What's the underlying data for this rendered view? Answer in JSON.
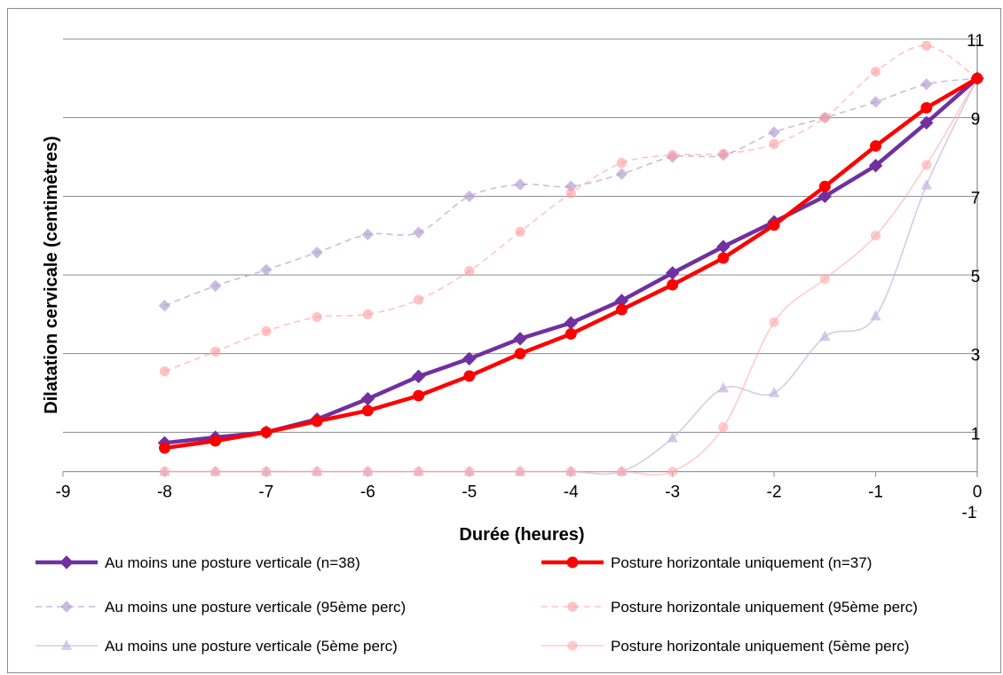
{
  "chart_data": {
    "type": "line",
    "xlabel": "Durée (heures)",
    "ylabel": "Dilatation cervicale (centimètres)",
    "xlim": [
      -9,
      0
    ],
    "ylim": [
      -1,
      11
    ],
    "x_ticks": [
      "-9",
      "-8",
      "-7",
      "-6",
      "-5",
      "-4",
      "-3",
      "-2",
      "-1",
      "0"
    ],
    "y_ticks": [
      "-1",
      "1",
      "3",
      "5",
      "7",
      "9",
      "11"
    ],
    "legend_position": "bottom",
    "grid": "horizontal",
    "x": [
      -8,
      -7.5,
      -7,
      -6.5,
      -6,
      -5.5,
      -5,
      -4.5,
      -4,
      -3.5,
      -3,
      -2.5,
      -2,
      -1.5,
      -1,
      -0.5,
      0
    ],
    "series": [
      {
        "name": "Au moins une posture verticale (n=38)",
        "color": "#7030a0",
        "style": "solid",
        "marker": "diamond",
        "smooth": false,
        "opacity": 1,
        "values": [
          0.73,
          0.87,
          1.0,
          1.33,
          1.85,
          2.42,
          2.87,
          3.38,
          3.78,
          4.35,
          5.05,
          5.72,
          6.35,
          7.0,
          7.78,
          8.87,
          10.0
        ]
      },
      {
        "name": "Posture horizontale uniquement (n=37)",
        "color": "#ff0000",
        "style": "solid",
        "marker": "circle",
        "smooth": false,
        "opacity": 1,
        "values": [
          0.6,
          0.78,
          1.0,
          1.28,
          1.55,
          1.93,
          2.43,
          3.0,
          3.5,
          4.12,
          4.75,
          5.43,
          6.27,
          7.25,
          8.28,
          9.25,
          10.0
        ]
      },
      {
        "name": "Au moins une posture verticale (95ème perc)",
        "color": "#b4a0d2",
        "style": "dashed",
        "marker": "diamond",
        "smooth": true,
        "opacity": 0.7,
        "values": [
          4.22,
          4.72,
          5.13,
          5.57,
          6.03,
          6.08,
          7.0,
          7.3,
          7.25,
          7.57,
          8.0,
          8.05,
          8.63,
          9.0,
          9.4,
          9.85,
          10.0
        ]
      },
      {
        "name": "Posture horizontale uniquement (95ème perc)",
        "color": "#ff9c9c",
        "style": "dashed",
        "marker": "circle",
        "smooth": true,
        "opacity": 0.6,
        "values": [
          2.55,
          3.05,
          3.57,
          3.93,
          4.0,
          4.37,
          5.1,
          6.1,
          7.08,
          7.85,
          8.05,
          8.08,
          8.33,
          9.0,
          10.17,
          10.83,
          10.0
        ]
      },
      {
        "name": "Au moins une posture verticale (5ème perc)",
        "color": "#c4b4e0",
        "style": "solid",
        "marker": "triangle",
        "smooth": true,
        "opacity": 0.7,
        "values": [
          0,
          0,
          0,
          0,
          0,
          0,
          0,
          0,
          0,
          0,
          0.85,
          2.12,
          2.0,
          3.43,
          3.95,
          7.28,
          10.0
        ]
      },
      {
        "name": "Posture horizontale uniquement (5ème perc)",
        "color": "#ffaaaa",
        "style": "solid",
        "marker": "circle",
        "smooth": true,
        "opacity": 0.6,
        "values": [
          0,
          0,
          0,
          0,
          0,
          0,
          0,
          0,
          0,
          0,
          0,
          1.13,
          3.8,
          4.9,
          6.0,
          7.8,
          10.0
        ]
      }
    ]
  }
}
